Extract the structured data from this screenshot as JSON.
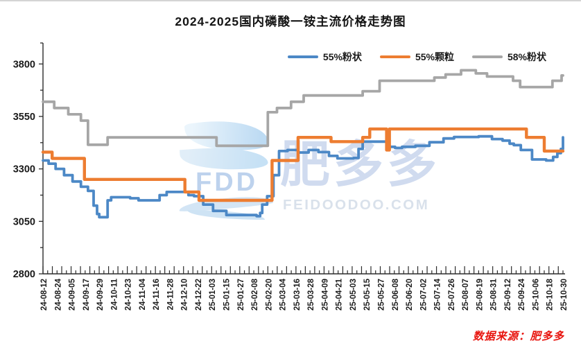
{
  "title": "2024-2025国内磷酸一铵主流价格走势图",
  "source_note": "数据来源：肥多多",
  "watermark": {
    "logo_text": "FDD",
    "brand_text": "肥多多",
    "domain_text": "FEIDOODOO.COM"
  },
  "legend": [
    {
      "label": "55%粉状",
      "color": "#4C88C6"
    },
    {
      "label": "55%颗粒",
      "color": "#ED7D31"
    },
    {
      "label": "58%粉状",
      "color": "#A6A6A6"
    }
  ],
  "chart_data": {
    "type": "line",
    "title": "2024-2025国内磷酸一铵主流价格走势图",
    "xlabel": "",
    "ylabel": "",
    "grid": false,
    "legend_position": "top-right",
    "interpolation": "step-after",
    "y_axis": {
      "min": 2800,
      "max": 3900,
      "ticks": [
        2800,
        3050,
        3300,
        3550,
        3800
      ],
      "minor_ticks": [
        2925,
        3175,
        3425,
        3675,
        3900
      ]
    },
    "x_unit": "date_label_index",
    "x_labels": [
      "24-08-12",
      "24-08-24",
      "24-09-05",
      "24-09-17",
      "24-09-29",
      "24-10-11",
      "24-10-23",
      "24-11-04",
      "24-11-16",
      "24-11-28",
      "24-12-10",
      "24-12-22",
      "25-01-03",
      "25-01-15",
      "25-01-27",
      "25-02-08",
      "25-02-20",
      "25-03-04",
      "25-03-16",
      "25-03-28",
      "25-04-09",
      "25-04-21",
      "25-05-03",
      "25-05-15",
      "25-05-27",
      "25-06-08",
      "25-06-20",
      "25-07-02",
      "25-07-14",
      "25-07-26",
      "25-08-07",
      "25-08-19",
      "25-08-31",
      "25-09-12",
      "25-09-24",
      "25-10-06",
      "25-10-18",
      "25-10-30"
    ],
    "series": [
      {
        "name": "55%粉状",
        "color": "#4C88C6",
        "width": 3.8,
        "points": [
          [
            0,
            3340
          ],
          [
            0.4,
            3325
          ],
          [
            0.9,
            3300
          ],
          [
            1.5,
            3270
          ],
          [
            2.1,
            3240
          ],
          [
            2.7,
            3215
          ],
          [
            3.2,
            3195
          ],
          [
            3.6,
            3125
          ],
          [
            3.85,
            3085
          ],
          [
            4.0,
            3070
          ],
          [
            4.45,
            3070
          ],
          [
            4.6,
            3150
          ],
          [
            4.85,
            3165
          ],
          [
            6.2,
            3160
          ],
          [
            6.8,
            3150
          ],
          [
            7.5,
            3150
          ],
          [
            8.3,
            3175
          ],
          [
            8.8,
            3190
          ],
          [
            9.85,
            3190
          ],
          [
            10.35,
            3175
          ],
          [
            10.75,
            3170
          ],
          [
            11.4,
            3130
          ],
          [
            12.1,
            3100
          ],
          [
            13.05,
            3080
          ],
          [
            15.2,
            3075
          ],
          [
            15.45,
            3090
          ],
          [
            15.6,
            3130
          ],
          [
            15.95,
            3170
          ],
          [
            16.4,
            3270
          ],
          [
            16.8,
            3385
          ],
          [
            17.4,
            3390
          ],
          [
            18.15,
            3378
          ],
          [
            18.9,
            3390
          ],
          [
            19.6,
            3380
          ],
          [
            20.35,
            3362
          ],
          [
            20.95,
            3350
          ],
          [
            22.1,
            3352
          ],
          [
            22.45,
            3395
          ],
          [
            22.75,
            3430
          ],
          [
            24.3,
            3430
          ],
          [
            24.5,
            3405
          ],
          [
            25.05,
            3400
          ],
          [
            25.55,
            3405
          ],
          [
            26.5,
            3410
          ],
          [
            27.5,
            3427
          ],
          [
            28.5,
            3445
          ],
          [
            29.25,
            3452
          ],
          [
            31.0,
            3455
          ],
          [
            31.95,
            3442
          ],
          [
            32.7,
            3435
          ],
          [
            33.2,
            3420
          ],
          [
            33.5,
            3413
          ],
          [
            34.0,
            3390
          ],
          [
            34.8,
            3345
          ],
          [
            35.8,
            3340
          ],
          [
            36.3,
            3357
          ],
          [
            36.6,
            3375
          ],
          [
            36.85,
            3395
          ],
          [
            37,
            3450
          ]
        ]
      },
      {
        "name": "55%颗粒",
        "color": "#ED7D31",
        "width": 4.4,
        "points": [
          [
            0,
            3380
          ],
          [
            0.65,
            3350
          ],
          [
            2.95,
            3250
          ],
          [
            10.1,
            3190
          ],
          [
            11.1,
            3150
          ],
          [
            16.3,
            3340
          ],
          [
            18.15,
            3450
          ],
          [
            20.5,
            3430
          ],
          [
            22.75,
            3450
          ],
          [
            23.25,
            3490
          ],
          [
            24.45,
            3390
          ],
          [
            24.65,
            3490
          ],
          [
            34.4,
            3450
          ],
          [
            35.67,
            3385
          ],
          [
            37,
            3385
          ]
        ]
      },
      {
        "name": "58%粉状",
        "color": "#A6A6A6",
        "width": 3.8,
        "points": [
          [
            0,
            3620
          ],
          [
            0.8,
            3590
          ],
          [
            1.8,
            3560
          ],
          [
            2.7,
            3530
          ],
          [
            3.2,
            3415
          ],
          [
            4.6,
            3450
          ],
          [
            12.35,
            3410
          ],
          [
            16.0,
            3570
          ],
          [
            16.65,
            3590
          ],
          [
            17.65,
            3620
          ],
          [
            18.55,
            3650
          ],
          [
            22.75,
            3670
          ],
          [
            23.95,
            3720
          ],
          [
            27.85,
            3735
          ],
          [
            28.65,
            3750
          ],
          [
            29.75,
            3770
          ],
          [
            30.8,
            3755
          ],
          [
            31.6,
            3740
          ],
          [
            33.45,
            3720
          ],
          [
            33.95,
            3690
          ],
          [
            36.25,
            3720
          ],
          [
            36.9,
            3745
          ],
          [
            37,
            3745
          ]
        ]
      }
    ]
  }
}
